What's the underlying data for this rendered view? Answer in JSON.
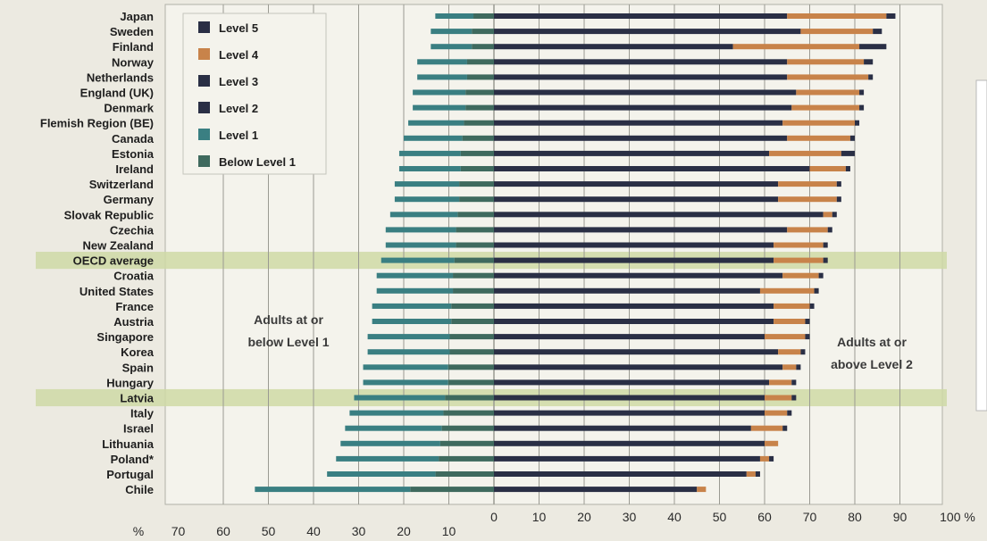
{
  "chart_data": {
    "type": "bar",
    "orientation": "horizontal-diverging",
    "x_unit": "%",
    "xlim": [
      -70,
      100
    ],
    "x_ticks_left": [
      "70",
      "60",
      "50",
      "40",
      "30",
      "20",
      "10"
    ],
    "x_ticks_right": [
      "0",
      "10",
      "20",
      "30",
      "40",
      "50",
      "60",
      "70",
      "80",
      "90",
      "100 %"
    ],
    "legend_placement": "top-left",
    "legend": [
      {
        "label": "Level 5",
        "color": "#2a2f45"
      },
      {
        "label": "Level 4",
        "color": "#c8834a"
      },
      {
        "label": "Level 3",
        "color": "#2a2f45"
      },
      {
        "label": "Level 2",
        "color": "#2a2f45"
      },
      {
        "label": "Level 1",
        "color": "#3a7f82"
      },
      {
        "label": "Below Level 1",
        "color": "#3f6a5e"
      }
    ],
    "annotations": {
      "left": [
        "Adults at or",
        "below Level 1"
      ],
      "right": [
        "Adults at or",
        "above Level 2"
      ]
    },
    "highlighted": [
      "OECD average",
      "Latvia"
    ],
    "countries": [
      {
        "name": "Japan",
        "below": 13,
        "l23": 65,
        "l4": 87,
        "l5": 89
      },
      {
        "name": "Sweden",
        "below": 14,
        "l23": 68,
        "l4": 84,
        "l5": 86
      },
      {
        "name": "Finland",
        "below": 14,
        "l23": 53,
        "l4": 81,
        "l5": 87
      },
      {
        "name": "Norway",
        "below": 17,
        "l23": 65,
        "l4": 82,
        "l5": 84
      },
      {
        "name": "Netherlands",
        "below": 17,
        "l23": 65,
        "l4": 83,
        "l5": 84
      },
      {
        "name": "England (UK)",
        "below": 18,
        "l23": 67,
        "l4": 81,
        "l5": 82
      },
      {
        "name": "Denmark",
        "below": 18,
        "l23": 66,
        "l4": 81,
        "l5": 82
      },
      {
        "name": "Flemish Region (BE)",
        "below": 19,
        "l23": 64,
        "l4": 80,
        "l5": 81
      },
      {
        "name": "Canada",
        "below": 20,
        "l23": 65,
        "l4": 79,
        "l5": 80
      },
      {
        "name": "Estonia",
        "below": 21,
        "l23": 61,
        "l4": 77,
        "l5": 80
      },
      {
        "name": "Ireland",
        "below": 21,
        "l23": 70,
        "l4": 78,
        "l5": 79
      },
      {
        "name": "Switzerland",
        "below": 22,
        "l23": 63,
        "l4": 76,
        "l5": 77
      },
      {
        "name": "Germany",
        "below": 22,
        "l23": 63,
        "l4": 76,
        "l5": 77
      },
      {
        "name": "Slovak Republic",
        "below": 23,
        "l23": 73,
        "l4": 75,
        "l5": 76
      },
      {
        "name": "Czechia",
        "below": 24,
        "l23": 65,
        "l4": 74,
        "l5": 75
      },
      {
        "name": "New Zealand",
        "below": 24,
        "l23": 62,
        "l4": 73,
        "l5": 74
      },
      {
        "name": "OECD average",
        "below": 25,
        "l23": 62,
        "l4": 73,
        "l5": 74
      },
      {
        "name": "Croatia",
        "below": 26,
        "l23": 64,
        "l4": 72,
        "l5": 73
      },
      {
        "name": "United States",
        "below": 26,
        "l23": 59,
        "l4": 71,
        "l5": 72
      },
      {
        "name": "France",
        "below": 27,
        "l23": 62,
        "l4": 70,
        "l5": 71
      },
      {
        "name": "Austria",
        "below": 27,
        "l23": 62,
        "l4": 69,
        "l5": 70
      },
      {
        "name": "Singapore",
        "below": 28,
        "l23": 60,
        "l4": 69,
        "l5": 70
      },
      {
        "name": "Korea",
        "below": 28,
        "l23": 63,
        "l4": 68,
        "l5": 69
      },
      {
        "name": "Spain",
        "below": 29,
        "l23": 64,
        "l4": 67,
        "l5": 68
      },
      {
        "name": "Hungary",
        "below": 29,
        "l23": 61,
        "l4": 66,
        "l5": 67
      },
      {
        "name": "Latvia",
        "below": 31,
        "l23": 60,
        "l4": 66,
        "l5": 67
      },
      {
        "name": "Italy",
        "below": 32,
        "l23": 60,
        "l4": 65,
        "l5": 66
      },
      {
        "name": "Israel",
        "below": 33,
        "l23": 57,
        "l4": 64,
        "l5": 65
      },
      {
        "name": "Lithuania",
        "below": 34,
        "l23": 60,
        "l4": 63,
        "l5": 63
      },
      {
        "name": "Poland*",
        "below": 35,
        "l23": 59,
        "l4": 61,
        "l5": 62
      },
      {
        "name": "Portugal",
        "below": 37,
        "l23": 56,
        "l4": 58,
        "l5": 59
      },
      {
        "name": "Chile",
        "below": 53,
        "l23": 45,
        "l4": 47,
        "l5": 47
      }
    ]
  }
}
